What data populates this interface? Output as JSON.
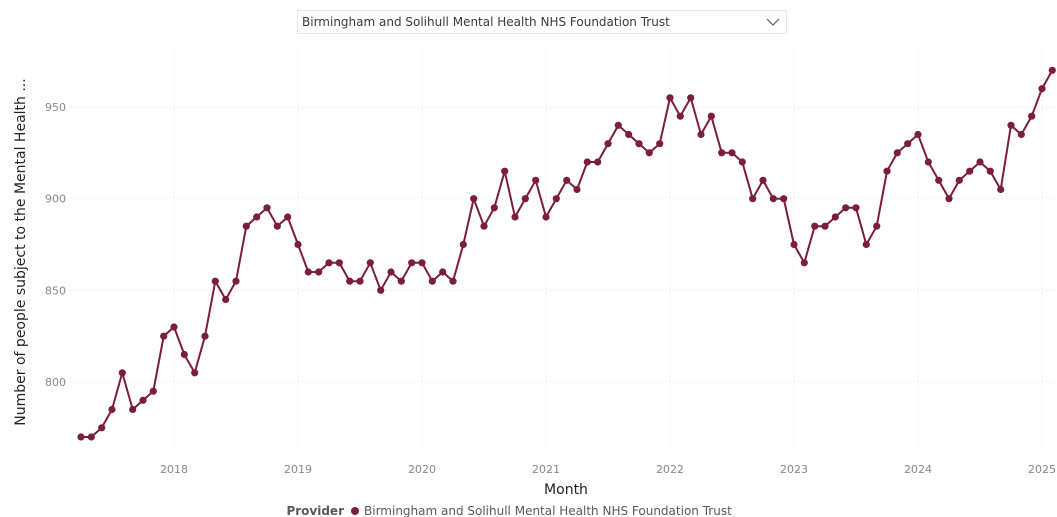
{
  "filter": {
    "selected": "Birmingham and Solihull Mental Health NHS Foundation Trust",
    "icon": "chevron-down-icon"
  },
  "chart_data": {
    "type": "line",
    "title": "",
    "xlabel": "Month",
    "ylabel": "Number of people subject to the Mental Health ...",
    "x_ticks": [
      "2018",
      "2019",
      "2020",
      "2021",
      "2022",
      "2023",
      "2024",
      "2025"
    ],
    "y_ticks": [
      800,
      850,
      900,
      950
    ],
    "ylim": [
      760,
      975
    ],
    "xlim": [
      "2017-03",
      "2025-02"
    ],
    "grid": true,
    "legend": {
      "title": "Provider",
      "position": "bottom"
    },
    "color": "#7b1e3a",
    "series": [
      {
        "name": "Birmingham and Solihull Mental Health NHS Foundation Trust",
        "x": [
          "2017-04",
          "2017-05",
          "2017-06",
          "2017-07",
          "2017-08",
          "2017-09",
          "2017-10",
          "2017-11",
          "2017-12",
          "2018-01",
          "2018-02",
          "2018-03",
          "2018-04",
          "2018-05",
          "2018-06",
          "2018-07",
          "2018-08",
          "2018-09",
          "2018-10",
          "2018-11",
          "2018-12",
          "2019-01",
          "2019-02",
          "2019-03",
          "2019-04",
          "2019-05",
          "2019-06",
          "2019-07",
          "2019-08",
          "2019-09",
          "2019-10",
          "2019-11",
          "2019-12",
          "2020-01",
          "2020-02",
          "2020-03",
          "2020-04",
          "2020-05",
          "2020-06",
          "2020-07",
          "2020-08",
          "2020-09",
          "2020-10",
          "2020-11",
          "2020-12",
          "2021-01",
          "2021-02",
          "2021-03",
          "2021-04",
          "2021-05",
          "2021-06",
          "2021-07",
          "2021-08",
          "2021-09",
          "2021-10",
          "2021-11",
          "2021-12",
          "2022-01",
          "2022-02",
          "2022-03",
          "2022-04",
          "2022-05",
          "2022-06",
          "2022-07",
          "2022-08",
          "2022-09",
          "2022-10",
          "2022-11",
          "2022-12",
          "2023-01",
          "2023-02",
          "2023-03",
          "2023-04",
          "2023-05",
          "2023-06",
          "2023-07",
          "2023-08",
          "2023-09",
          "2023-10",
          "2023-11",
          "2023-12",
          "2024-01",
          "2024-02",
          "2024-03",
          "2024-04",
          "2024-05",
          "2024-06",
          "2024-07",
          "2024-08",
          "2024-09",
          "2024-10",
          "2024-11",
          "2024-12",
          "2025-01",
          "2025-02"
        ],
        "values": [
          770,
          770,
          775,
          785,
          805,
          785,
          790,
          795,
          825,
          830,
          815,
          805,
          825,
          855,
          845,
          855,
          885,
          890,
          895,
          885,
          890,
          875,
          860,
          860,
          865,
          865,
          855,
          855,
          865,
          850,
          860,
          855,
          865,
          865,
          855,
          860,
          855,
          875,
          900,
          885,
          895,
          915,
          890,
          900,
          910,
          890,
          900,
          910,
          905,
          920,
          920,
          930,
          940,
          935,
          930,
          925,
          930,
          955,
          945,
          955,
          935,
          945,
          925,
          925,
          920,
          900,
          910,
          900,
          900,
          875,
          865,
          885,
          885,
          890,
          895,
          895,
          875,
          885,
          915,
          925,
          930,
          935,
          920,
          910,
          900,
          910,
          915,
          920,
          915,
          905,
          940,
          935,
          945,
          960,
          970
        ]
      }
    ]
  }
}
